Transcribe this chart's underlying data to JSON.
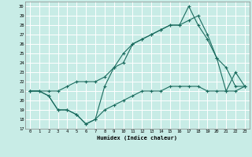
{
  "xlabel": "Humidex (Indice chaleur)",
  "bg_color": "#c8ece6",
  "grid_color": "#ffffff",
  "line_color": "#1a6b5e",
  "xlim": [
    -0.5,
    23.5
  ],
  "ylim": [
    17,
    30.5
  ],
  "xticks": [
    0,
    1,
    2,
    3,
    4,
    5,
    6,
    7,
    8,
    9,
    10,
    11,
    12,
    13,
    14,
    15,
    16,
    17,
    18,
    19,
    20,
    21,
    22,
    23
  ],
  "yticks": [
    17,
    18,
    19,
    20,
    21,
    22,
    23,
    24,
    25,
    26,
    27,
    28,
    29,
    30
  ],
  "line1_x": [
    0,
    1,
    2,
    3,
    4,
    5,
    6,
    7,
    8,
    9,
    10,
    11,
    12,
    13,
    14,
    15,
    16,
    17,
    18,
    19,
    20,
    21,
    22,
    23
  ],
  "line1_y": [
    21,
    21,
    20.5,
    19,
    19,
    18.5,
    17.5,
    18,
    19,
    19.5,
    20,
    20.5,
    21,
    21,
    21,
    21.5,
    21.5,
    21.5,
    21.5,
    21,
    21,
    21,
    21,
    21.5
  ],
  "line2_x": [
    0,
    1,
    2,
    3,
    4,
    5,
    6,
    7,
    8,
    9,
    10,
    11,
    12,
    13,
    14,
    15,
    16,
    17,
    18,
    19,
    20,
    21,
    22,
    23
  ],
  "line2_y": [
    21,
    21,
    20.5,
    19,
    19,
    18.5,
    17.5,
    18,
    21.5,
    23.5,
    24,
    26,
    26.5,
    27,
    27.5,
    28,
    28,
    28.5,
    29,
    27,
    24.5,
    21,
    23,
    21.5
  ],
  "line3_x": [
    0,
    2,
    3,
    4,
    5,
    6,
    7,
    8,
    9,
    10,
    11,
    12,
    13,
    14,
    15,
    16,
    17,
    18,
    19,
    20,
    21,
    22,
    23
  ],
  "line3_y": [
    21,
    21,
    21,
    21.5,
    22,
    22,
    22,
    22.5,
    23.5,
    25,
    26,
    26.5,
    27,
    27.5,
    28,
    28,
    30,
    28,
    26.5,
    24.5,
    23.5,
    21.5,
    21.5
  ]
}
